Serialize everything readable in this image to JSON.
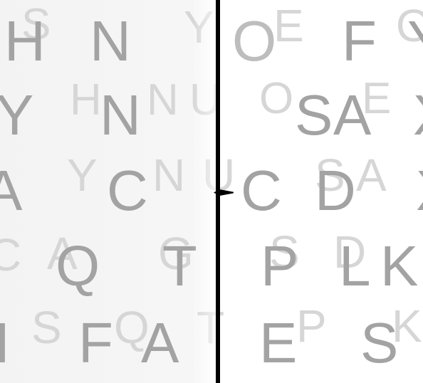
{
  "rows": [
    {
      "letters": [
        {
          "char": "S",
          "layer": "back"
        },
        {
          "char": "H",
          "layer": "front"
        },
        {
          "char": "N",
          "layer": "front"
        },
        {
          "char": "Y",
          "layer": "back"
        },
        {
          "char": "E",
          "layer": "back"
        },
        {
          "char": "O",
          "layer": "mid"
        },
        {
          "char": "F",
          "layer": "front"
        },
        {
          "char": "O",
          "layer": "back"
        },
        {
          "char": "Y",
          "layer": "front"
        }
      ]
    },
    {
      "letters": [
        {
          "char": "Y",
          "layer": "front"
        },
        {
          "char": "H",
          "layer": "back"
        },
        {
          "char": "N",
          "layer": "front"
        },
        {
          "char": "N",
          "layer": "back"
        },
        {
          "char": "U",
          "layer": "back"
        },
        {
          "char": "O",
          "layer": "back"
        },
        {
          "char": "S",
          "layer": "front"
        },
        {
          "char": "A",
          "layer": "front"
        },
        {
          "char": "E",
          "layer": "back"
        },
        {
          "char": "X",
          "layer": "front"
        }
      ]
    },
    {
      "letters": [
        {
          "char": "A",
          "layer": "front"
        },
        {
          "char": "Y",
          "layer": "back"
        },
        {
          "char": "C",
          "layer": "front"
        },
        {
          "char": "N",
          "layer": "back"
        },
        {
          "char": "U",
          "layer": "back"
        },
        {
          "char": "C",
          "layer": "front"
        },
        {
          "char": "S",
          "layer": "back"
        },
        {
          "char": "D",
          "layer": "front"
        },
        {
          "char": "A",
          "layer": "back"
        },
        {
          "char": "X",
          "layer": "front"
        }
      ]
    },
    {
      "letters": [
        {
          "char": "C",
          "layer": "back"
        },
        {
          "char": "A",
          "layer": "back"
        },
        {
          "char": "Q",
          "layer": "front"
        },
        {
          "char": "G",
          "layer": "back"
        },
        {
          "char": "T",
          "layer": "front"
        },
        {
          "char": "S",
          "layer": "back"
        },
        {
          "char": "P",
          "layer": "front"
        },
        {
          "char": "D",
          "layer": "back"
        },
        {
          "char": "L",
          "layer": "front"
        },
        {
          "char": "K",
          "layer": "front"
        }
      ]
    },
    {
      "letters": [
        {
          "char": "I",
          "layer": "front"
        },
        {
          "char": "S",
          "layer": "back"
        },
        {
          "char": "F",
          "layer": "front"
        },
        {
          "char": "Q",
          "layer": "back"
        },
        {
          "char": "A",
          "layer": "front"
        },
        {
          "char": "T",
          "layer": "back"
        },
        {
          "char": "E",
          "layer": "front"
        },
        {
          "char": "P",
          "layer": "back"
        },
        {
          "char": "S",
          "layer": "front"
        },
        {
          "char": "K",
          "layer": "back"
        }
      ]
    }
  ],
  "divider_color": "#000000",
  "front_color": "#a3a3a3",
  "back_color": "#d6d6d6"
}
